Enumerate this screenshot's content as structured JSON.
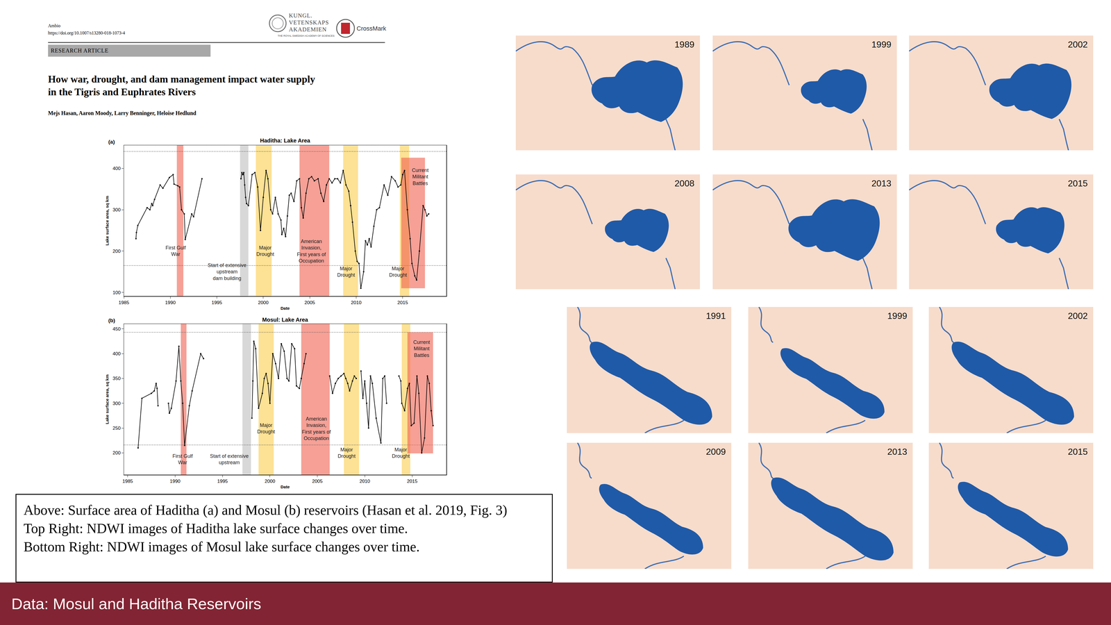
{
  "header": {
    "journal": "Ambio",
    "doi": "https://doi.org/10.1007/s13280-018-1073-4",
    "logo_lines": [
      "KUNGL.",
      "VETENSKAPS",
      "AKADEMIEN"
    ],
    "logo_subtitle": "THE ROYAL SWEDISH ACADEMY OF SCIENCES",
    "crossmark": "CrossMark",
    "section": "RESEARCH ARTICLE",
    "title_lines": [
      "How war, drought, and dam management impact water supply",
      "in the Tigris and Euphrates Rivers"
    ],
    "authors": "Mejs Hasan, Aaron Moody, Larry Benninger, Heloise Hedlund"
  },
  "chart_data": [
    {
      "type": "line",
      "panel": "(a)",
      "title": "Haditha: Lake Area",
      "x_label": "Date",
      "y_label": "Lake surface area, sq km",
      "xlim": [
        1985,
        2019.7
      ],
      "xticks": [
        1985,
        1990,
        1995,
        2000,
        2005,
        2010,
        2015
      ],
      "ylim": [
        91,
        456
      ],
      "yticks": [
        100,
        200,
        300,
        400
      ],
      "grid": false,
      "color": "#000000",
      "marker": "circle",
      "line_style": "solid",
      "reference_lines": [
        441,
        165
      ],
      "bands": [
        {
          "label": [
            "First Gulf",
            "War"
          ],
          "x0": 1990.7,
          "x1": 1991.4,
          "color": "rgba(240,96,80,0.6)"
        },
        {
          "label": [
            "Start of extensive",
            "upstream",
            "dam building"
          ],
          "x0": 1997.5,
          "x1": 1998.4,
          "color": "rgba(190,190,190,0.6)"
        },
        {
          "label": [
            "Major",
            "Drought"
          ],
          "x0": 1999.2,
          "x1": 2000.9,
          "color": "rgba(252,200,60,0.55)"
        },
        {
          "label": [
            "American",
            "Invasion,",
            "First years of",
            "Occupation"
          ],
          "x0": 2003.9,
          "x1": 2007.1,
          "color": "rgba(240,96,80,0.6)"
        },
        {
          "label": [
            "Major",
            "Drought"
          ],
          "x0": 2008.6,
          "x1": 2010.2,
          "color": "rgba(252,200,60,0.55)"
        },
        {
          "label": [
            "Major",
            "Drought"
          ],
          "x0": 2014.7,
          "x1": 2015.7,
          "color": "rgba(252,200,60,0.55)"
        },
        {
          "label": [
            "Current",
            "Militant",
            "Battles"
          ],
          "x0": 2014.85,
          "x1": 2017.4,
          "y0": 110,
          "y1": 426,
          "color": "rgba(240,96,80,0.6)"
        }
      ],
      "x": [
        1986.3,
        1986.35,
        1986.5,
        1987.5,
        1987.8,
        1988.0,
        1988.1,
        1988.3,
        1988.9,
        1989.2,
        1989.9,
        1990.3,
        1990.4,
        1990.8,
        1991.0,
        1991.2,
        1991.5,
        1991.6,
        1992.3,
        1992.5,
        1993.4,
        1995.5,
        1997.6,
        1997.7,
        1997.8,
        1997.9,
        1998.0,
        1998.1,
        1998.2,
        1998.4,
        1998.8,
        1999.1,
        1999.4,
        1999.7,
        2000.0,
        2000.3,
        2000.5,
        2000.8,
        2001.0,
        2001.3,
        2001.6,
        2001.9,
        2002.0,
        2002.2,
        2002.4,
        2002.6,
        2002.8,
        2003.0,
        2003.3,
        2003.6,
        2003.9,
        2004.1,
        2004.3,
        2004.6,
        2004.9,
        2005.2,
        2005.5,
        2005.9,
        2006.2,
        2006.5,
        2006.8,
        2007.1,
        2007.4,
        2007.7,
        2008.0,
        2008.3,
        2008.6,
        2008.9,
        2009.2,
        2009.4,
        2009.6,
        2009.9,
        2010.1,
        2010.3,
        2010.5,
        2010.8,
        2011.0,
        2011.2,
        2011.4,
        2011.6,
        2011.9,
        2012.2,
        2012.5,
        2013.0,
        2013.4,
        2013.8,
        2014.2,
        2014.5,
        2014.8,
        2015.0,
        2015.2,
        2015.5,
        2015.8,
        2016.0,
        2016.3,
        2016.5,
        2016.8,
        2017.2,
        2017.4,
        2017.6,
        2017.8
      ],
      "values": [
        230,
        245,
        262,
        305,
        300,
        315,
        310,
        325,
        360,
        352,
        378,
        385,
        362,
        358,
        355,
        300,
        290,
        228,
        290,
        283,
        375,
        null,
        375,
        390,
        385,
        390,
        360,
        330,
        315,
        310,
        385,
        390,
        355,
        250,
        330,
        395,
        375,
        300,
        290,
        330,
        290,
        275,
        240,
        255,
        235,
        285,
        335,
        340,
        320,
        370,
        375,
        305,
        280,
        340,
        375,
        380,
        370,
        375,
        340,
        320,
        360,
        375,
        365,
        375,
        375,
        365,
        395,
        360,
        345,
        310,
        270,
        200,
        175,
        170,
        110,
        150,
        225,
        215,
        230,
        210,
        260,
        300,
        305,
        360,
        335,
        380,
        370,
        355,
        360,
        385,
        395,
        300,
        230,
        170,
        140,
        130,
        200,
        310,
        300,
        285,
        290
      ]
    },
    {
      "type": "line",
      "panel": "(b)",
      "title": "Mosul: Lake Area",
      "x_label": "Date",
      "y_label": "Lake surface area, sq km",
      "xlim": [
        1984.6,
        2018.6
      ],
      "xticks": [
        1985,
        1990,
        1995,
        2000,
        2005,
        2010,
        2015
      ],
      "ylim": [
        156,
        460
      ],
      "yticks": [
        200,
        250,
        300,
        350,
        400,
        450
      ],
      "grid": false,
      "color": "#000000",
      "marker": "circle",
      "line_style": "solid",
      "reference_lines": [
        443,
        216
      ],
      "bands": [
        {
          "label": [
            "First Gulf",
            "War"
          ],
          "x0": 1990.6,
          "x1": 1991.2,
          "color": "rgba(240,96,80,0.6)"
        },
        {
          "label": [
            "Start of extensive",
            "upstream"
          ],
          "x0": 1997.1,
          "x1": 1998.0,
          "color": "rgba(190,190,190,0.6)"
        },
        {
          "label": [
            "Major",
            "Drought"
          ],
          "x0": 1998.8,
          "x1": 2000.4,
          "color": "rgba(252,200,60,0.55)"
        },
        {
          "label": [
            "American",
            "Invasion,",
            "First years of",
            "Occupation"
          ],
          "x0": 2003.3,
          "x1": 2006.3,
          "color": "rgba(240,96,80,0.6)"
        },
        {
          "label": [
            "Major",
            "Drought"
          ],
          "x0": 2007.8,
          "x1": 2009.4,
          "color": "rgba(252,200,60,0.55)"
        },
        {
          "label": [
            "Major",
            "Drought"
          ],
          "x0": 2013.9,
          "x1": 2014.8,
          "color": "rgba(252,200,60,0.55)"
        },
        {
          "label": [
            "Current",
            "Militant",
            "Battles"
          ],
          "x0": 2014.5,
          "x1": 2017.2,
          "y0": 199,
          "y1": 443,
          "color": "rgba(240,96,80,0.6)"
        }
      ],
      "x": [
        1986.1,
        1986.5,
        1987.5,
        1987.8,
        1988.0,
        1988.1,
        1988.2,
        1988.7,
        1989.3,
        1989.4,
        1989.6,
        1990.1,
        1990.4,
        1990.6,
        1990.8,
        1991.0,
        1991.5,
        1991.8,
        1992.7,
        1993.0,
        1995.5,
        1998.1,
        1998.2,
        1998.3,
        1998.5,
        1998.8,
        1999.2,
        1999.4,
        1999.6,
        1999.8,
        2000.0,
        2000.3,
        2000.6,
        2000.9,
        2001.2,
        2001.5,
        2001.8,
        2002.0,
        2002.3,
        2002.6,
        2002.8,
        2003.1,
        2003.3,
        2003.6,
        2003.8,
        2005.0,
        2006.3,
        2006.6,
        2006.9,
        2007.2,
        2007.5,
        2007.8,
        2008.0,
        2008.2,
        2008.4,
        2008.7,
        2008.9,
        2009.1,
        2009.35,
        2009.6,
        2009.8,
        2010.0,
        2010.2,
        2010.4,
        2010.6,
        2010.8,
        2011.2,
        2011.7,
        2011.9,
        2012.1,
        2012.3,
        2013.0,
        2013.6,
        2013.8,
        2013.9,
        2014.2,
        2014.5,
        2014.7,
        2014.9,
        2015.2,
        2015.5,
        2015.7,
        2016.0,
        2016.3,
        2016.6,
        2016.8,
        2017.0,
        2017.2
      ],
      "values": [
        210,
        310,
        320,
        325,
        340,
        330,
        295,
        null,
        300,
        280,
        290,
        345,
        415,
        345,
        300,
        215,
        295,
        325,
        400,
        390,
        null,
        270,
        345,
        425,
        410,
        290,
        320,
        350,
        360,
        340,
        300,
        400,
        380,
        350,
        420,
        405,
        350,
        345,
        420,
        410,
        335,
        330,
        350,
        380,
        400,
        null,
        355,
        320,
        340,
        350,
        355,
        360,
        350,
        340,
        325,
        345,
        355,
        350,
        null,
        365,
        310,
        345,
        300,
        250,
        355,
        340,
        270,
        220,
        350,
        355,
        300,
        null,
        355,
        345,
        300,
        285,
        330,
        340,
        255,
        260,
        355,
        320,
        200,
        230,
        355,
        340,
        285,
        255
      ]
    }
  ],
  "images": {
    "haditha": {
      "years": [
        "1989",
        "1999",
        "2002",
        "2008",
        "2013",
        "2015"
      ]
    },
    "mosul": {
      "years": [
        "1991",
        "1999",
        "2002",
        "2009",
        "2013",
        "2015"
      ]
    }
  },
  "caption": [
    "Above: Surface area of Haditha (a) and Mosul (b) reservoirs (Hasan et al. 2019, Fig. 3)",
    "Top Right: NDWI images of Haditha lake surface changes over time.",
    "Bottom Right: NDWI images of Mosul lake surface changes over time."
  ],
  "footer": "Data: Mosul and Haditha Reservoirs"
}
